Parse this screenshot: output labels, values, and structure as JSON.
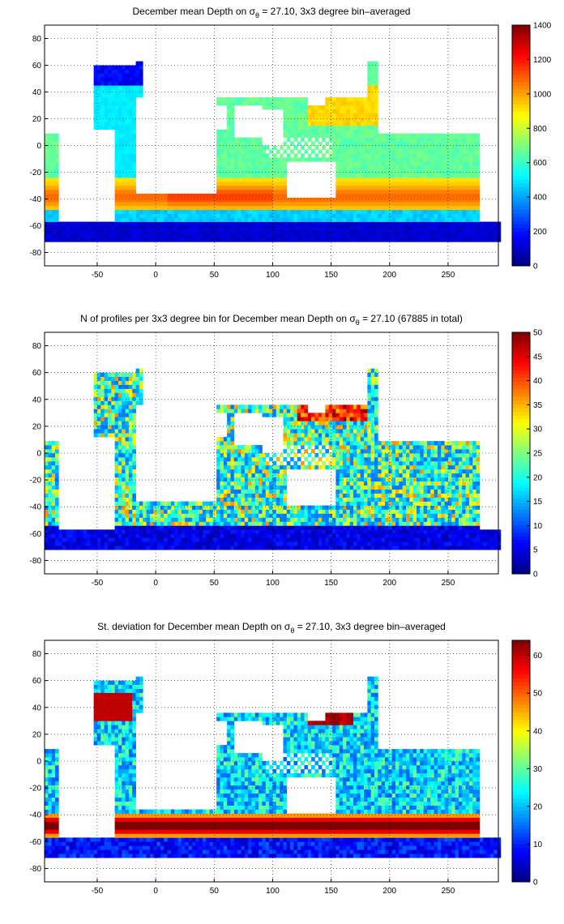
{
  "chart_data": [
    {
      "type": "heatmap",
      "title_prefix": "December mean Depth on σ",
      "title_subscript": "θ",
      "title_suffix": " = 27.10, 3x3 degree bin–averaged",
      "xlim": [
        -95,
        293
      ],
      "ylim": [
        -90,
        90
      ],
      "xticks": [
        -50,
        0,
        50,
        100,
        150,
        200,
        250
      ],
      "yticks": [
        80,
        60,
        40,
        20,
        0,
        -20,
        -40,
        -60,
        -80
      ],
      "colorbar": {
        "min": 0,
        "max": 1400,
        "ticks": [
          0,
          200,
          400,
          600,
          800,
          1000,
          1200,
          1400
        ]
      },
      "colormap": "jet",
      "grid": true,
      "bin_size_deg": 3
    },
    {
      "type": "heatmap",
      "title_prefix": "N of profiles per 3x3 degree bin for December mean Depth on σ",
      "title_subscript": "θ",
      "title_suffix": " = 27.10 (67885 in total)",
      "xlim": [
        -95,
        293
      ],
      "ylim": [
        -90,
        90
      ],
      "xticks": [
        -50,
        0,
        50,
        100,
        150,
        200,
        250
      ],
      "yticks": [
        80,
        60,
        40,
        20,
        0,
        -20,
        -40,
        -60,
        -80
      ],
      "colorbar": {
        "min": 0,
        "max": 50,
        "ticks": [
          0,
          5,
          10,
          15,
          20,
          25,
          30,
          35,
          40,
          45,
          50
        ]
      },
      "colormap": "jet",
      "grid": true,
      "bin_size_deg": 3
    },
    {
      "type": "heatmap",
      "title_prefix": "St. deviation for December mean Depth on σ",
      "title_subscript": "θ",
      "title_suffix": " = 27.10, 3x3 degree bin–averaged",
      "xlim": [
        -95,
        293
      ],
      "ylim": [
        -90,
        90
      ],
      "xticks": [
        -50,
        0,
        50,
        100,
        150,
        200,
        250
      ],
      "yticks": [
        80,
        60,
        40,
        20,
        0,
        -20,
        -40,
        -60,
        -80
      ],
      "colorbar": {
        "min": 0,
        "max": 64,
        "ticks": [
          0,
          10,
          20,
          30,
          40,
          50,
          60
        ]
      },
      "colormap": "jet",
      "grid": true,
      "bin_size_deg": 3
    }
  ]
}
